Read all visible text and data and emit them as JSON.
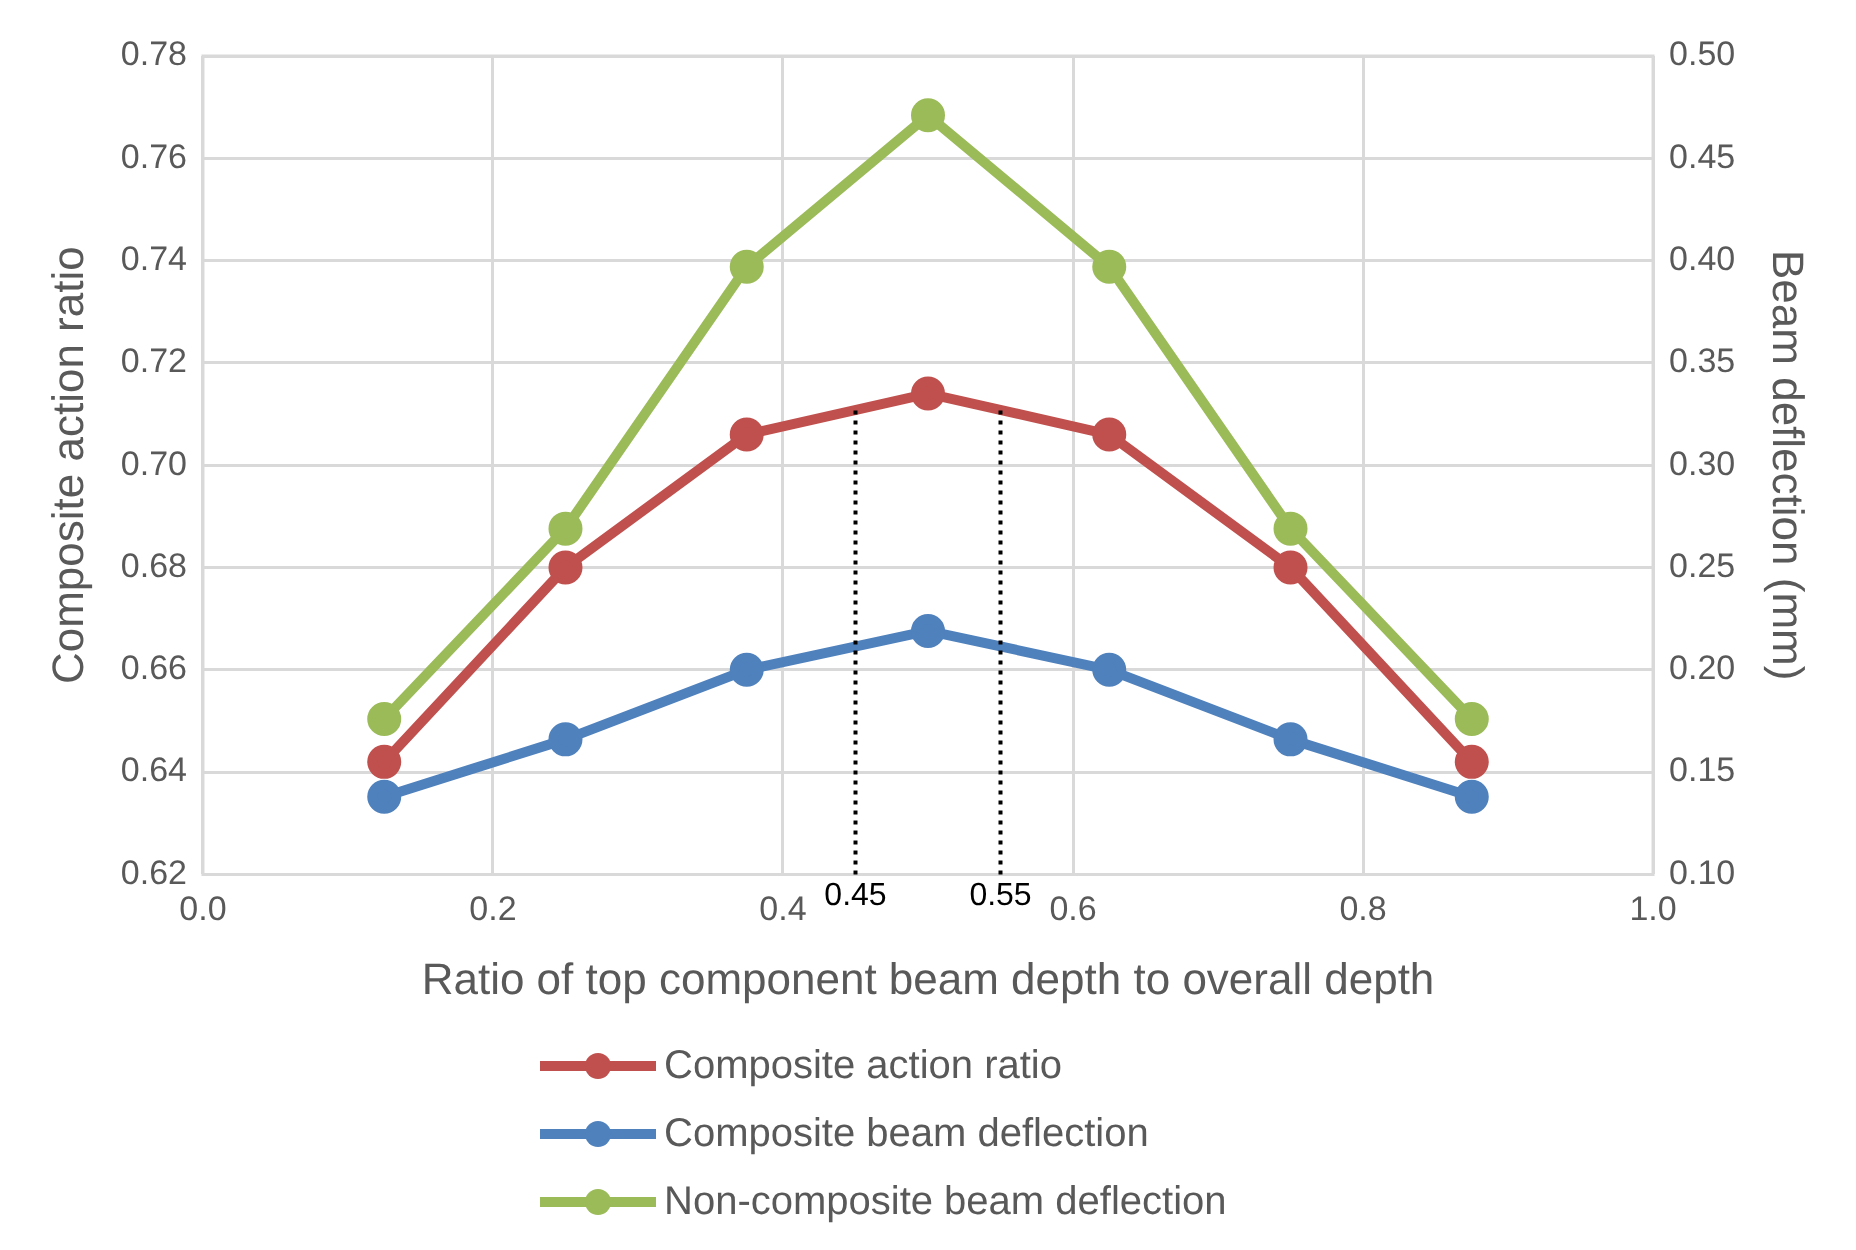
{
  "chart_data": {
    "type": "line",
    "xlabel": "Ratio of top component beam depth to overall depth",
    "ylabel": "Composite action ratio",
    "y2label": "Beam deflection (mm)",
    "x": [
      0.125,
      0.25,
      0.375,
      0.5,
      0.625,
      0.75,
      0.875
    ],
    "series": [
      {
        "name": "Composite action ratio",
        "color": "#c0504d",
        "values": [
          0.642,
          0.68,
          0.706,
          0.714,
          0.706,
          0.68,
          0.642
        ]
      },
      {
        "name": "Composite beam deflection",
        "color": "#4f81bd",
        "axis": "y2",
        "values": [
          0.138,
          0.166,
          0.2,
          0.219,
          0.2,
          0.166,
          0.138
        ]
      },
      {
        "name": "Non-composite beam deflection",
        "color": "#9bbb59",
        "axis": "y2",
        "values": [
          0.176,
          0.269,
          0.397,
          0.471,
          0.397,
          0.269,
          0.176
        ]
      }
    ],
    "xlim": [
      0,
      1
    ],
    "xticks": [
      {
        "value": 0,
        "label": "0.0"
      },
      0.2,
      0.4,
      0.6,
      0.8,
      {
        "value": 1,
        "label": "1.0"
      }
    ],
    "ylim": [
      0.62,
      0.78
    ],
    "yticks": [
      0.62,
      0.64,
      0.66,
      0.68,
      {
        "value": 0.7,
        "label": "0.70"
      },
      0.72,
      0.74,
      0.76,
      0.78
    ],
    "y2lim": [
      0.1,
      0.5
    ],
    "y2ticks": [
      {
        "value": 0.1,
        "label": "0.10"
      },
      0.15,
      {
        "value": 0.2,
        "label": "0.20"
      },
      0.25,
      {
        "value": 0.3,
        "label": "0.30"
      },
      0.35,
      {
        "value": 0.4,
        "label": "0.40"
      },
      0.45,
      {
        "value": 0.5,
        "label": "0.50"
      }
    ],
    "ref_lines": [
      {
        "axis": "x",
        "value": 0.45,
        "label": "0.45",
        "color": "#000000",
        "line_style": "dotted"
      },
      {
        "axis": "x",
        "value": 0.55,
        "label": "0.55",
        "color": "#000000",
        "line_style": "dotted"
      }
    ],
    "grid": true,
    "legend": "bottom",
    "marker": "circle",
    "line_style": "solid"
  }
}
